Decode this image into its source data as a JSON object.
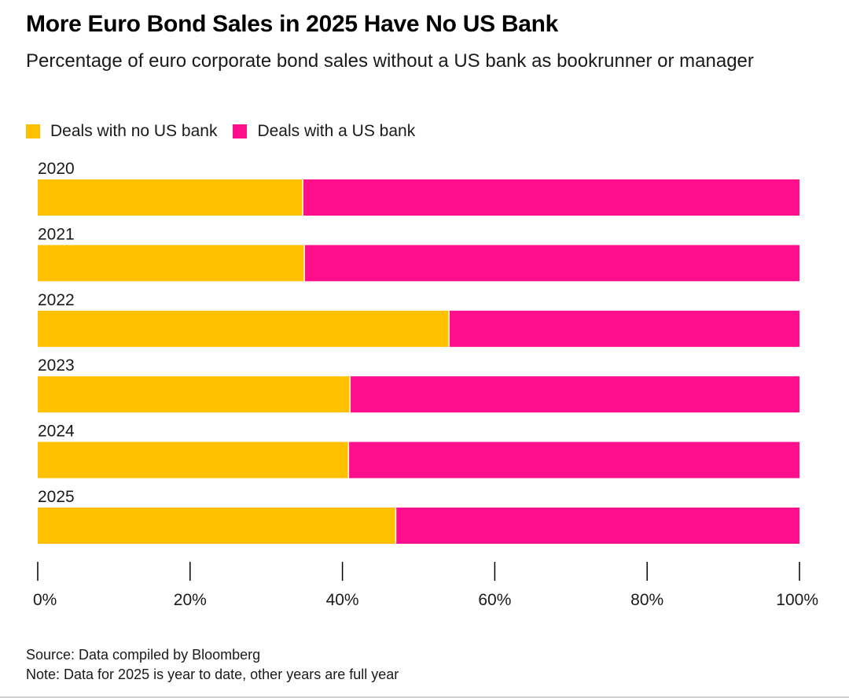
{
  "header": {
    "title": "More Euro Bond Sales in 2025 Have No US Bank",
    "subtitle": "Percentage of euro corporate bond sales without a US bank as bookrunner or manager"
  },
  "legend": [
    {
      "label": "Deals with no US bank",
      "color": "#FFC000"
    },
    {
      "label": "Deals with a US bank",
      "color": "#FF0F8C"
    }
  ],
  "chart_data": {
    "type": "bar",
    "orientation": "horizontal",
    "stacked": true,
    "categories": [
      "2020",
      "2021",
      "2022",
      "2023",
      "2024",
      "2025"
    ],
    "series": [
      {
        "name": "Deals with no US bank",
        "color": "#FFC000",
        "values": [
          34.8,
          35.0,
          54.0,
          41.0,
          40.8,
          47.0
        ]
      },
      {
        "name": "Deals with a US bank",
        "color": "#FF0F8C",
        "values": [
          65.2,
          65.0,
          46.0,
          59.0,
          59.2,
          53.0
        ]
      }
    ],
    "xlim": [
      0,
      100
    ],
    "xticks": [
      "0%",
      "20%",
      "40%",
      "60%",
      "80%",
      "100%"
    ],
    "grid": false,
    "legend_position": "top-left"
  },
  "footer": {
    "source": "Source: Data compiled by Bloomberg",
    "note": "Note: Data for 2025 is year to date, other years are full year"
  }
}
